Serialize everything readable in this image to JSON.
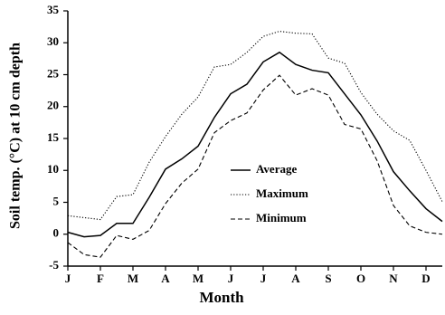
{
  "chart_data": {
    "type": "line",
    "xlabel": "Month",
    "ylabel": "Soil temp. (°C) at 10 cm depth",
    "x": [
      0,
      0.5,
      1,
      1.5,
      2,
      2.5,
      3,
      3.5,
      4,
      4.5,
      5,
      5.5,
      6,
      6.5,
      7,
      7.5,
      8,
      8.5,
      9,
      9.5,
      10,
      10.5,
      11,
      11.5
    ],
    "xlim": [
      0,
      11.5
    ],
    "xticks": [
      {
        "value": 0,
        "label": "J"
      },
      {
        "value": 1,
        "label": "F"
      },
      {
        "value": 2,
        "label": "M"
      },
      {
        "value": 3,
        "label": "A"
      },
      {
        "value": 4,
        "label": "M"
      },
      {
        "value": 5,
        "label": "J"
      },
      {
        "value": 6,
        "label": "J"
      },
      {
        "value": 7,
        "label": "A"
      },
      {
        "value": 8,
        "label": "S"
      },
      {
        "value": 9,
        "label": "O"
      },
      {
        "value": 10,
        "label": "N"
      },
      {
        "value": 11,
        "label": "D"
      }
    ],
    "ylim": [
      -5,
      35
    ],
    "yticks": [
      -5,
      0,
      5,
      10,
      15,
      20,
      25,
      30,
      35
    ],
    "series": [
      {
        "name": "Average",
        "color": "#000000",
        "dash": "solid",
        "values": [
          0.3,
          -0.4,
          -0.2,
          1.7,
          1.7,
          5.8,
          10.2,
          11.8,
          13.8,
          18.3,
          22,
          23.5,
          27,
          28.5,
          26.6,
          25.7,
          25.3,
          22,
          18.7,
          14.6,
          9.8,
          6.8,
          4.0,
          2.0
        ]
      },
      {
        "name": "Maximum",
        "color": "#000000",
        "dash": "dotted",
        "values": [
          2.9,
          2.6,
          2.3,
          5.9,
          6.2,
          11.3,
          15.3,
          18.8,
          21.5,
          26.2,
          26.6,
          28.5,
          31,
          31.8,
          31.5,
          31.4,
          27.6,
          26.8,
          22.2,
          18.8,
          16.2,
          14.7,
          10,
          5.1
        ]
      },
      {
        "name": "Minimum",
        "color": "#000000",
        "dash": "dashed",
        "values": [
          -1.3,
          -3.2,
          -3.6,
          -0.2,
          -0.8,
          0.6,
          4.8,
          8,
          10.2,
          15.9,
          17.8,
          19,
          22.6,
          24.9,
          21.8,
          22.8,
          21.8,
          17.2,
          16.5,
          11.5,
          4.5,
          1.3,
          0.3,
          0
        ]
      }
    ]
  }
}
